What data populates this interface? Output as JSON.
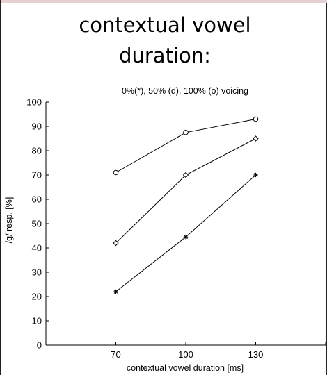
{
  "slide": {
    "title_line1": "contextual vowel",
    "title_line2": "duration:",
    "band_color": "#e8cfd4"
  },
  "chart_data": {
    "type": "line",
    "title": "0%(*), 50% (d), 100% (o) voicing",
    "xlabel": "contextual vowel duration [ms]",
    "ylabel": "/g/ resp. [%]",
    "categories": [
      70,
      100,
      130
    ],
    "xlim": [
      40,
      160
    ],
    "ylim": [
      0,
      100
    ],
    "yticks": [
      0,
      10,
      20,
      30,
      40,
      50,
      60,
      70,
      80,
      90,
      100
    ],
    "grid": false,
    "series": [
      {
        "name": "100% (o)",
        "marker": "circle",
        "values": [
          71,
          87.5,
          93
        ]
      },
      {
        "name": "50% (d)",
        "marker": "diamond",
        "values": [
          42,
          70,
          85
        ]
      },
      {
        "name": "0%(*)",
        "marker": "star",
        "values": [
          22,
          44.5,
          70
        ]
      }
    ]
  }
}
